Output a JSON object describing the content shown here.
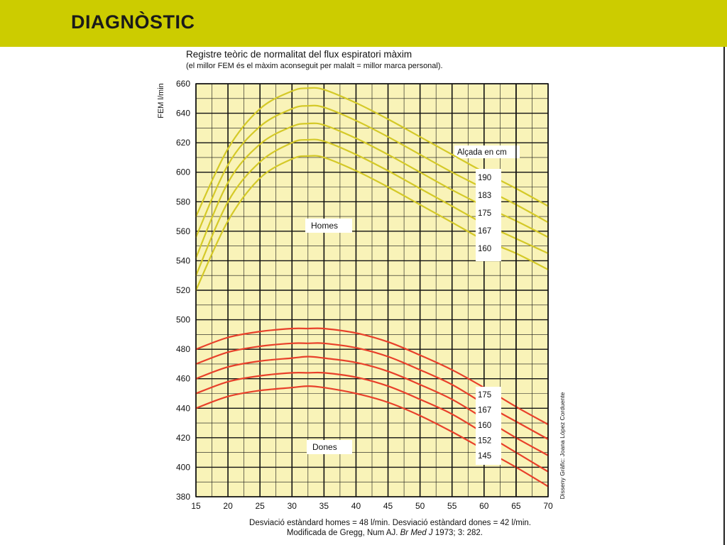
{
  "slide": {
    "title": "DIAGNÒSTIC"
  },
  "colors": {
    "header": "#cccc00",
    "plot_background": "#f9f3b8",
    "men_curves": "#d4c928",
    "women_curves": "#e8402a"
  },
  "chart_data": {
    "type": "line",
    "title": "Registre teòric de normalitat del flux espiratori màxim",
    "subtitle": "(el millor FEM és el màxim aconseguit per malalt = millor marca personal).",
    "xlabel": "",
    "ylabel": "FEM l/min",
    "xlim": [
      15,
      70
    ],
    "ylim": [
      380,
      660
    ],
    "xticks": [
      15,
      20,
      25,
      30,
      35,
      40,
      45,
      50,
      55,
      60,
      65,
      70
    ],
    "yticks": [
      380,
      400,
      420,
      440,
      460,
      480,
      500,
      520,
      540,
      560,
      580,
      600,
      620,
      640,
      660
    ],
    "grid": true,
    "height_legend_title": "Alçada en cm",
    "group_labels": {
      "men": "Homes",
      "women": "Dones"
    },
    "footnote_1": "Desviació estàndard homes = 48 l/min. Desviació estàndard dones = 42 l/min.",
    "footnote_2_prefix": "Modificada de Gregg, Num AJ. ",
    "footnote_2_journal": "Br Med J",
    "footnote_2_suffix": " 1973; 3: 282.",
    "credit": "Disseny Gràfic: Joana López Corduente",
    "series": [
      {
        "group": "men",
        "name": "190",
        "x": [
          15,
          20,
          25,
          30,
          32.5,
          35,
          40,
          45,
          50,
          55,
          60,
          65,
          70
        ],
        "y": [
          570,
          616,
          643,
          655,
          657,
          656,
          647,
          636,
          624,
          612,
          600,
          589,
          577
        ]
      },
      {
        "group": "men",
        "name": "183",
        "x": [
          15,
          20,
          25,
          30,
          32.5,
          35,
          40,
          45,
          50,
          55,
          60,
          65,
          70
        ],
        "y": [
          556,
          605,
          631,
          643,
          645,
          644,
          635,
          624,
          612,
          600,
          589,
          578,
          566
        ]
      },
      {
        "group": "men",
        "name": "175",
        "x": [
          15,
          20,
          25,
          30,
          32.5,
          35,
          40,
          45,
          50,
          55,
          60,
          65,
          70
        ],
        "y": [
          542,
          593,
          619,
          631,
          633,
          632,
          623,
          612,
          600,
          588,
          577,
          567,
          556
        ]
      },
      {
        "group": "men",
        "name": "167",
        "x": [
          15,
          20,
          25,
          30,
          32.5,
          35,
          40,
          45,
          50,
          55,
          60,
          65,
          70
        ],
        "y": [
          530,
          580,
          607,
          620,
          622,
          621,
          612,
          601,
          589,
          577,
          565,
          555,
          545
        ]
      },
      {
        "group": "men",
        "name": "160",
        "x": [
          15,
          20,
          25,
          30,
          32.5,
          35,
          40,
          45,
          50,
          55,
          60,
          65,
          70
        ],
        "y": [
          520,
          567,
          596,
          609,
          611,
          610,
          601,
          590,
          578,
          566,
          554,
          545,
          534
        ]
      },
      {
        "group": "women",
        "name": "175",
        "x": [
          15,
          20,
          25,
          30,
          32.5,
          35,
          40,
          45,
          50,
          55,
          60,
          65,
          70
        ],
        "y": [
          480,
          488,
          492,
          494,
          494,
          494,
          491,
          485,
          476,
          466,
          454,
          441,
          429
        ]
      },
      {
        "group": "women",
        "name": "167",
        "x": [
          15,
          20,
          25,
          30,
          32.5,
          35,
          40,
          45,
          50,
          55,
          60,
          65,
          70
        ],
        "y": [
          470,
          478,
          482,
          484,
          484,
          484,
          481,
          475,
          466,
          456,
          443,
          431,
          419
        ]
      },
      {
        "group": "women",
        "name": "160",
        "x": [
          15,
          20,
          25,
          30,
          32.5,
          35,
          40,
          45,
          50,
          55,
          60,
          65,
          70
        ],
        "y": [
          460,
          468,
          472,
          474,
          475,
          474,
          471,
          465,
          456,
          446,
          433,
          420,
          408
        ]
      },
      {
        "group": "women",
        "name": "152",
        "x": [
          15,
          20,
          25,
          30,
          32.5,
          35,
          40,
          45,
          50,
          55,
          60,
          65,
          70
        ],
        "y": [
          450,
          458,
          462,
          464,
          464,
          464,
          461,
          455,
          446,
          436,
          423,
          410,
          397
        ]
      },
      {
        "group": "women",
        "name": "145",
        "x": [
          15,
          20,
          25,
          30,
          32.5,
          35,
          40,
          45,
          50,
          55,
          60,
          65,
          70
        ],
        "y": [
          440,
          448,
          452,
          454,
          455,
          454,
          450,
          444,
          435,
          424,
          412,
          400,
          387
        ]
      }
    ]
  }
}
